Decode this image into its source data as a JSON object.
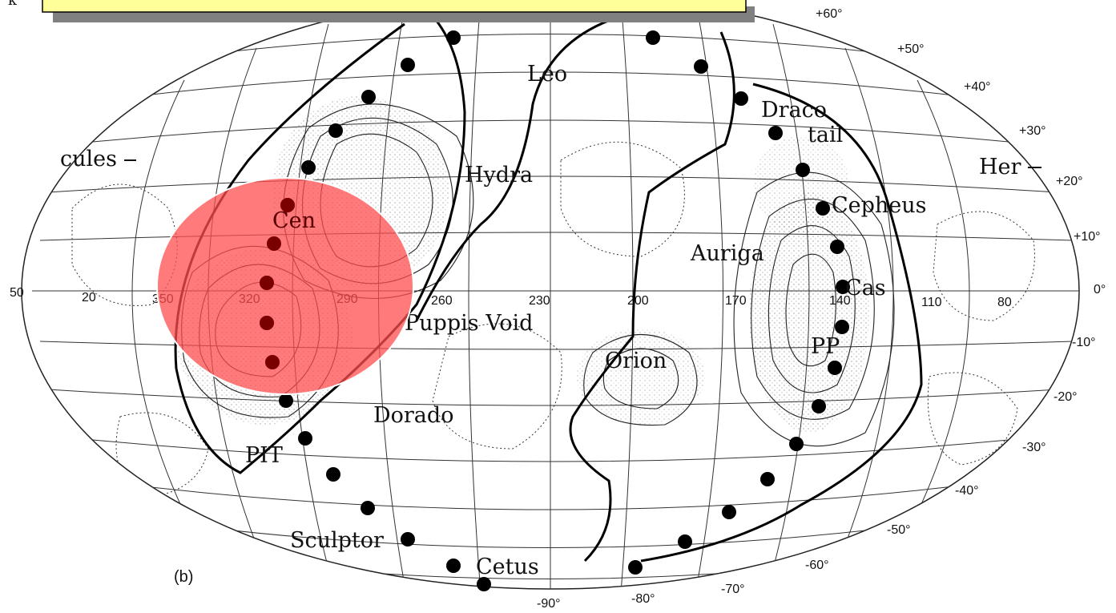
{
  "banner": {
    "corner_text": "k",
    "fill": "#ffff99",
    "shadow": "#808080"
  },
  "highlight": {
    "color": "#ff4d4d",
    "opacity": 0.78
  },
  "panel_label": "(b)",
  "longitude_labels": [
    "50",
    "20",
    "350",
    "320",
    "290",
    "260",
    "230",
    "200",
    "170",
    "140",
    "110",
    "80"
  ],
  "latitude_labels": [
    "+60°",
    "+50°",
    "+40°",
    "+30°",
    "+20°",
    "+10°",
    "0°",
    "-10°",
    "-20°",
    "-30°",
    "-40°",
    "-50°",
    "-60°",
    "-70°",
    "-80°",
    "-90°"
  ],
  "region_labels": [
    "Leo",
    "Draco",
    "tail",
    "Hydra",
    "cules",
    "Her",
    "Cepheus",
    "Cen",
    "Auriga",
    "Cas",
    "Puppis Void",
    "PP",
    "Orion",
    "Dorado",
    "PIT",
    "Sculptor",
    "Cetus"
  ],
  "colors": {
    "ink": "#111111",
    "band_stroke": "#000000"
  }
}
